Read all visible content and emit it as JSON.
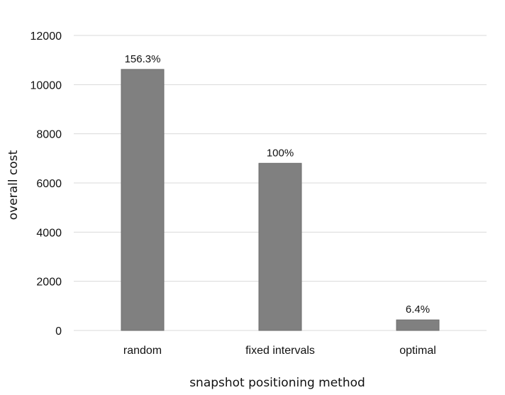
{
  "chart_data": {
    "type": "bar",
    "categories": [
      "random",
      "fixed intervals",
      "optimal"
    ],
    "values": [
      10620,
      6800,
      430
    ],
    "data_labels": [
      "156.3%",
      "100%",
      "6.4%"
    ],
    "title": "",
    "xlabel": "snapshot positioning method",
    "ylabel": "overall cost",
    "ylim": [
      0,
      12000
    ],
    "yticks": [
      0,
      2000,
      4000,
      6000,
      8000,
      10000,
      12000
    ],
    "grid": true,
    "legend": "none",
    "bar_color": "#808080",
    "grid_color": "#d9d9d9"
  }
}
